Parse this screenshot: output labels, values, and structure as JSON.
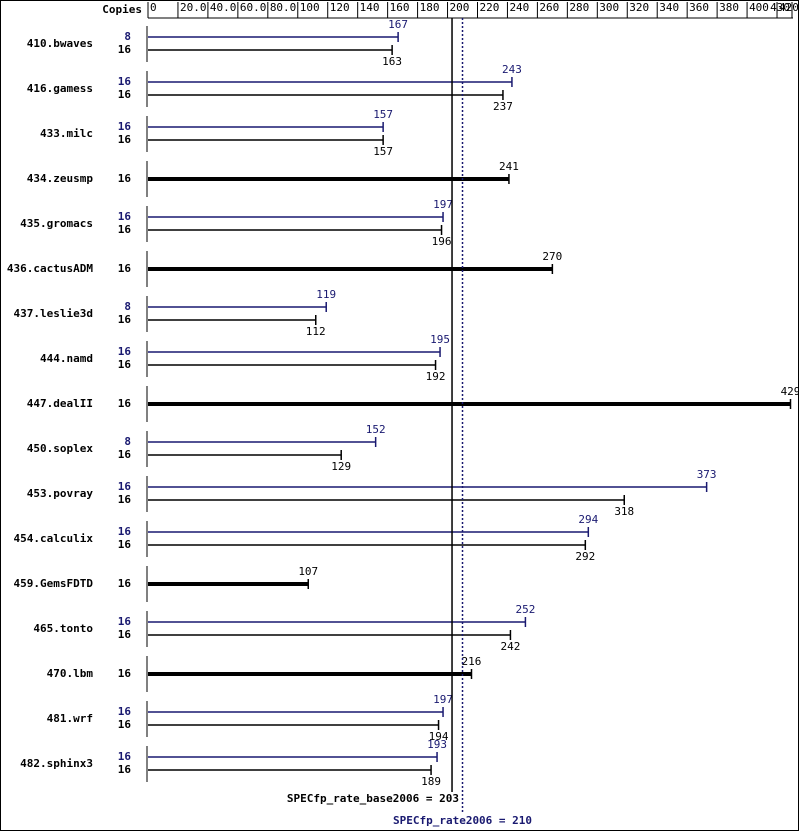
{
  "chart_data": {
    "type": "bar",
    "orientation": "horizontal",
    "copies_header": "Copies",
    "categories": [
      "410.bwaves",
      "416.gamess",
      "433.milc",
      "434.zeusmp",
      "435.gromacs",
      "436.cactusADM",
      "437.leslie3d",
      "444.namd",
      "447.dealII",
      "450.soplex",
      "453.povray",
      "454.calculix",
      "459.GemsFDTD",
      "465.tonto",
      "470.lbm",
      "481.wrf",
      "482.sphinx3"
    ],
    "series": [
      {
        "color": "#191970",
        "copies": [
          8,
          16,
          16,
          null,
          16,
          null,
          8,
          16,
          null,
          8,
          16,
          16,
          null,
          16,
          null,
          16,
          16
        ],
        "values": [
          167,
          243,
          157,
          null,
          197,
          null,
          119,
          195,
          null,
          152,
          373,
          294,
          null,
          252,
          null,
          197,
          193
        ]
      },
      {
        "color": "#000000",
        "copies": [
          16,
          16,
          16,
          16,
          16,
          16,
          16,
          16,
          16,
          16,
          16,
          16,
          16,
          16,
          16,
          16,
          16
        ],
        "values": [
          163,
          237,
          157,
          241,
          196,
          270,
          112,
          192,
          429,
          129,
          318,
          292,
          107,
          242,
          216,
          194,
          189
        ]
      }
    ],
    "xlim": [
      0,
      430
    ],
    "xticks": [
      0,
      {
        "value": 20,
        "label": "20.0"
      },
      {
        "value": 40,
        "label": "40.0"
      },
      {
        "value": 60,
        "label": "60.0"
      },
      {
        "value": 80,
        "label": "80.0"
      },
      100,
      120,
      140,
      160,
      180,
      200,
      220,
      240,
      260,
      280,
      300,
      320,
      340,
      360,
      380,
      400,
      420,
      430
    ],
    "reference_lines": [
      {
        "value": 203,
        "label": "SPECfp_rate_base2006 = 203",
        "color": "#000000",
        "style": "solid"
      },
      {
        "value": 210,
        "label": "SPECfp_rate2006 = 210",
        "color": "#191970",
        "style": "dotted"
      }
    ]
  }
}
